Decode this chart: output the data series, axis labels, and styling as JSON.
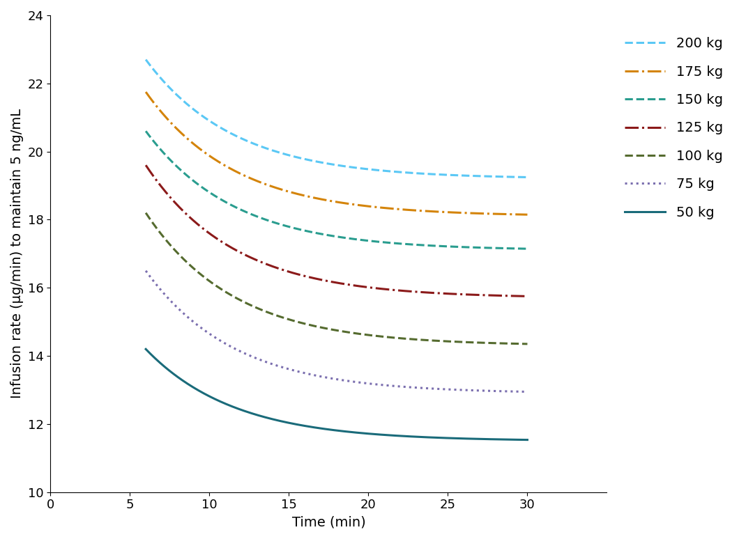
{
  "title": "",
  "xlabel": "Time (min)",
  "ylabel": "Infusion rate (μg/min) to maintain 5 ng/mL",
  "xlim": [
    0,
    35
  ],
  "ylim": [
    10,
    24
  ],
  "xticks": [
    0,
    5,
    10,
    15,
    20,
    25,
    30
  ],
  "yticks": [
    10,
    12,
    14,
    16,
    18,
    20,
    22,
    24
  ],
  "t_start": 6,
  "t_end": 30,
  "background_color": "#ffffff",
  "series": [
    {
      "label": "200 kg",
      "color": "#5bc8f5",
      "linestyle": "--",
      "start": 22.7,
      "end": 19.2,
      "b": 0.18
    },
    {
      "label": "175 kg",
      "color": "#d4840a",
      "linestyle": "-.",
      "start": 21.75,
      "end": 18.1,
      "b": 0.18
    },
    {
      "label": "150 kg",
      "color": "#2a9d8f",
      "linestyle": "--",
      "start": 20.6,
      "end": 17.1,
      "b": 0.18
    },
    {
      "label": "125 kg",
      "color": "#8b1a1a",
      "linestyle": "-.",
      "start": 19.6,
      "end": 15.7,
      "b": 0.18
    },
    {
      "label": "100 kg",
      "color": "#556b2f",
      "linestyle": "--",
      "start": 18.2,
      "end": 14.3,
      "b": 0.18
    },
    {
      "label": "75 kg",
      "color": "#7b6faf",
      "linestyle": ":",
      "start": 16.5,
      "end": 12.9,
      "b": 0.18
    },
    {
      "label": "50 kg",
      "color": "#1a6b7a",
      "linestyle": "-",
      "start": 14.2,
      "end": 11.5,
      "b": 0.18
    }
  ],
  "legend_fontsize": 14,
  "axis_fontsize": 14,
  "tick_fontsize": 13,
  "linewidth": 2.2
}
